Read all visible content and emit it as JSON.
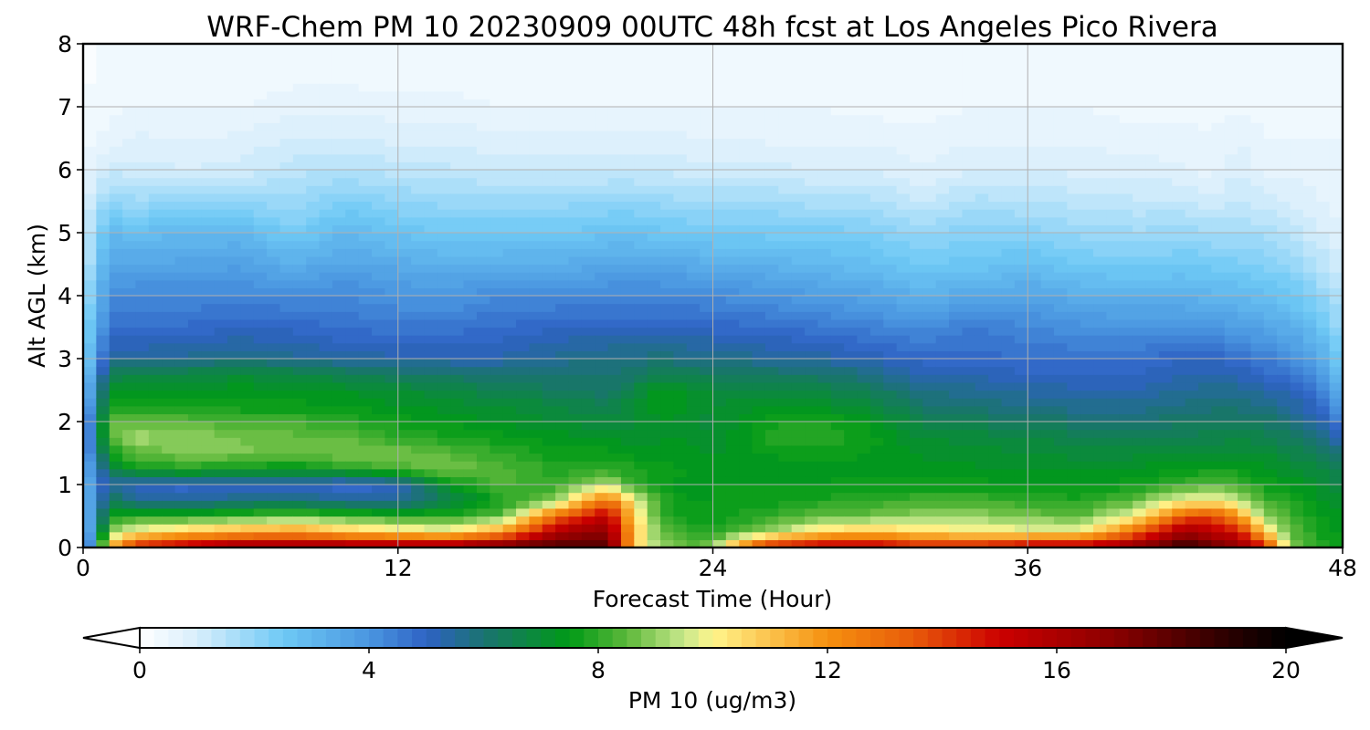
{
  "chart_data": {
    "type": "heatmap",
    "subtype": "filled-contour time-height cross-section",
    "title": "WRF-Chem PM 10  20230909 00UTC 48h fcst at Los Angeles Pico Rivera",
    "xlabel": "Forecast Time (Hour)",
    "ylabel": "Alt AGL (km)",
    "xlim": [
      0,
      48
    ],
    "ylim": [
      0,
      8
    ],
    "x_ticks": [
      "0",
      "12",
      "24",
      "36",
      "48"
    ],
    "y_ticks": [
      "0",
      "1",
      "2",
      "3",
      "4",
      "5",
      "6",
      "7",
      "8"
    ],
    "grid": true,
    "colorbar": {
      "label": "PM 10  (ug/m3)",
      "orientation": "horizontal",
      "placement": "bottom",
      "range": [
        0,
        20
      ],
      "ticks": [
        "0",
        "4",
        "8",
        "12",
        "16",
        "20"
      ],
      "extend": "both",
      "stops": [
        {
          "value": 0,
          "color": "#ffffff"
        },
        {
          "value": 1,
          "color": "#d8eefb"
        },
        {
          "value": 2.5,
          "color": "#6ec9f5"
        },
        {
          "value": 4,
          "color": "#4a96e0"
        },
        {
          "value": 5,
          "color": "#2f62c4"
        },
        {
          "value": 6,
          "color": "#1a7370"
        },
        {
          "value": 7.5,
          "color": "#009a16"
        },
        {
          "value": 8.5,
          "color": "#5cb83a"
        },
        {
          "value": 9.5,
          "color": "#c8e88c"
        },
        {
          "value": 10,
          "color": "#fff58c"
        },
        {
          "value": 11,
          "color": "#fbc24c"
        },
        {
          "value": 12,
          "color": "#f5900f"
        },
        {
          "value": 13.5,
          "color": "#e85a0a"
        },
        {
          "value": 15,
          "color": "#cc0000"
        },
        {
          "value": 17,
          "color": "#8a0000"
        },
        {
          "value": 19,
          "color": "#2a0000"
        },
        {
          "value": 20,
          "color": "#000000"
        }
      ]
    },
    "altitudes_km": [
      0,
      0.25,
      0.5,
      0.75,
      1,
      1.25,
      1.5,
      1.75,
      2,
      2.25,
      2.5,
      2.75,
      3,
      3.5,
      4,
      4.5,
      5,
      5.5,
      6,
      6.5,
      7,
      7.5,
      8
    ],
    "times_h": [
      0,
      1,
      2,
      4,
      6,
      8,
      10,
      12,
      14,
      16,
      18,
      20,
      21,
      22,
      23,
      24,
      26,
      28,
      30,
      32,
      34,
      36,
      38,
      40,
      42,
      43,
      44,
      45,
      46,
      47,
      48
    ],
    "profiles_ug_m3": [
      [
        2,
        2,
        2.2,
        2.5,
        3,
        3,
        3.2,
        3.2,
        3,
        2.7,
        2.4,
        2.2,
        2,
        1.8,
        1.5,
        1.2,
        1,
        0.8,
        0.6,
        0.4,
        0.3,
        0.2,
        0.2
      ],
      [
        11,
        9,
        7.5,
        6.5,
        5.5,
        6.5,
        7.5,
        8.3,
        8.5,
        7.6,
        7.2,
        6.5,
        5.5,
        4.8,
        4.2,
        3.5,
        3,
        2,
        1.2,
        0.6,
        0.4,
        0.3,
        0.3
      ],
      [
        15,
        10,
        8,
        5.5,
        5,
        7.5,
        8.5,
        9.2,
        8.6,
        7.6,
        7.3,
        6.7,
        5.5,
        4.8,
        4.3,
        3.5,
        2.8,
        1.8,
        1.1,
        0.8,
        0.5,
        0.3,
        0.3
      ],
      [
        16,
        11,
        8,
        5.5,
        4.8,
        7.8,
        8.8,
        9,
        8.5,
        7.6,
        7.3,
        6.8,
        5.6,
        4.8,
        4.3,
        3.6,
        3,
        2,
        1,
        0.7,
        0.5,
        0.3,
        0.3
      ],
      [
        17,
        11.5,
        8.3,
        5.8,
        5,
        7.5,
        8.8,
        8.7,
        8.2,
        7.6,
        7.4,
        6.9,
        5.8,
        5,
        4.3,
        3.7,
        3,
        2,
        1.1,
        0.8,
        0.5,
        0.3,
        0.3
      ],
      [
        17,
        12,
        8.6,
        6,
        5,
        7.4,
        8.6,
        8.6,
        8.2,
        7.6,
        7.3,
        6.8,
        5.6,
        4.9,
        4.2,
        3.3,
        2.4,
        1.8,
        1.4,
        1,
        0.7,
        0.4,
        0.3
      ],
      [
        17,
        11,
        8.3,
        5.5,
        4.7,
        7.8,
        8.8,
        8.5,
        8,
        7.5,
        7.2,
        6.5,
        5.4,
        4.7,
        4.3,
        3.6,
        3,
        2.3,
        1.5,
        1,
        0.7,
        0.4,
        0.3
      ],
      [
        17,
        10.5,
        8,
        5.5,
        5,
        8.3,
        8.8,
        8,
        7.6,
        7.3,
        7,
        6.2,
        5.3,
        4.6,
        4,
        3.4,
        2.7,
        2,
        1.4,
        0.9,
        0.6,
        0.4,
        0.3
      ],
      [
        17,
        10.2,
        8,
        6.5,
        7.5,
        8.7,
        8.4,
        7.8,
        7.5,
        7.1,
        6.8,
        6.1,
        5.3,
        4.6,
        4,
        3.2,
        2.5,
        1.9,
        1.3,
        0.9,
        0.6,
        0.4,
        0.3
      ],
      [
        18,
        12,
        8.5,
        7.8,
        8.3,
        8.4,
        8,
        7.6,
        7.2,
        7,
        6.5,
        6,
        5.3,
        4.8,
        4.2,
        3.3,
        2.5,
        1.9,
        1.2,
        0.8,
        0.5,
        0.3,
        0.3
      ],
      [
        18.5,
        16,
        13,
        9,
        8,
        7.9,
        7.6,
        7.4,
        7,
        6.8,
        6.3,
        6,
        5.6,
        5,
        4.2,
        3.3,
        2.5,
        1.9,
        1.2,
        0.8,
        0.5,
        0.3,
        0.3
      ],
      [
        18,
        17,
        15.5,
        13,
        9.5,
        8,
        7.6,
        7.2,
        6.8,
        6.5,
        6.1,
        6,
        5.8,
        5,
        4.3,
        3.5,
        2.7,
        2,
        1.2,
        0.8,
        0.5,
        0.3,
        0.3
      ],
      [
        11,
        11,
        10.5,
        10,
        8,
        7.8,
        7.4,
        7,
        6.9,
        7,
        6.8,
        6.1,
        5.8,
        5,
        4.3,
        3.5,
        2.7,
        2,
        1.2,
        0.8,
        0.5,
        0.3,
        0.3
      ],
      [
        9,
        8.5,
        8,
        8,
        7.6,
        7.6,
        7.4,
        7.2,
        7.3,
        7.5,
        7.4,
        6.5,
        5.9,
        5,
        4.3,
        3.5,
        2.6,
        1.9,
        1.2,
        0.8,
        0.5,
        0.3,
        0.3
      ],
      [
        8.5,
        8,
        7.6,
        7.5,
        7.4,
        7.5,
        7.4,
        7.2,
        7.1,
        7.3,
        7.2,
        6.5,
        5.8,
        5,
        4.3,
        3.4,
        2.5,
        1.8,
        1.1,
        0.8,
        0.5,
        0.3,
        0.3
      ],
      [
        9,
        7.8,
        7.5,
        7.5,
        7.5,
        7.4,
        7.2,
        7,
        6.9,
        7,
        6.9,
        6.3,
        5.8,
        4.9,
        4.2,
        3.3,
        2.4,
        1.8,
        1.1,
        0.7,
        0.5,
        0.3,
        0.3
      ],
      [
        15,
        9,
        8,
        7.6,
        7.5,
        7.4,
        7.5,
        7.8,
        7.7,
        7.2,
        6.8,
        6.2,
        5.5,
        4.8,
        4,
        3.2,
        2.4,
        1.8,
        1.1,
        0.7,
        0.5,
        0.3,
        0.3
      ],
      [
        16,
        10.5,
        8.5,
        7.8,
        7.5,
        7.4,
        7.6,
        8.1,
        7.8,
        7.2,
        6.7,
        6.1,
        5.4,
        4.6,
        3.8,
        3,
        2.4,
        1.6,
        1,
        0.7,
        0.5,
        0.3,
        0.3
      ],
      [
        16,
        11,
        8.7,
        8,
        7.6,
        7.4,
        7.5,
        7.6,
        7.4,
        6.9,
        6.4,
        5.8,
        5.2,
        4.4,
        3.6,
        2.8,
        2.3,
        1.6,
        1,
        0.7,
        0.4,
        0.3,
        0.3
      ],
      [
        15,
        10.5,
        9,
        8.2,
        7.6,
        7.3,
        7.2,
        7,
        6.6,
        6.1,
        5.7,
        5.2,
        4.9,
        4.2,
        3.2,
        2.5,
        1.9,
        1.2,
        0.8,
        0.6,
        0.4,
        0.3,
        0.3
      ],
      [
        15,
        10.2,
        9,
        8.2,
        7.6,
        7.3,
        7.1,
        6.9,
        6.4,
        5.9,
        5.6,
        5.2,
        4.9,
        4.5,
        3.5,
        2.6,
        2.2,
        1.6,
        1,
        0.7,
        0.5,
        0.3,
        0.3
      ],
      [
        16,
        10,
        8.8,
        8,
        7.5,
        7.3,
        7,
        6.8,
        6.3,
        5.7,
        5.4,
        5,
        4.7,
        4.3,
        3.6,
        2.8,
        2.1,
        1.5,
        1,
        0.7,
        0.5,
        0.3,
        0.3
      ],
      [
        16,
        10,
        8.5,
        7.8,
        7.5,
        7.2,
        6.9,
        6.6,
        6.1,
        5.6,
        5.3,
        5,
        4.7,
        4.1,
        3.3,
        2.5,
        1.9,
        1.4,
        0.9,
        0.7,
        0.5,
        0.3,
        0.3
      ],
      [
        17,
        13,
        9.8,
        8.5,
        7.6,
        7.3,
        6.9,
        6.4,
        6,
        5.6,
        5.3,
        5,
        4.7,
        4,
        3.2,
        2.4,
        1.8,
        1.3,
        0.9,
        0.6,
        0.4,
        0.3,
        0.3
      ],
      [
        19,
        16.5,
        13.5,
        10,
        8.2,
        7.5,
        7,
        6.5,
        6.2,
        5.8,
        5.5,
        5.2,
        5,
        4,
        3.2,
        2.5,
        1.9,
        1.3,
        0.8,
        0.6,
        0.4,
        0.3,
        0.3
      ],
      [
        18,
        15.5,
        14,
        10,
        8.5,
        7.6,
        7.1,
        6.6,
        6.3,
        5.9,
        5.6,
        5.3,
        5,
        4,
        3.1,
        2.4,
        1.8,
        1.1,
        0.6,
        0.5,
        0.4,
        0.3,
        0.3
      ],
      [
        17,
        15,
        12,
        9.5,
        8.2,
        7.6,
        7.1,
        6.7,
        6.3,
        5.9,
        5.6,
        5.2,
        4.8,
        3.8,
        3,
        2.3,
        1.7,
        1.3,
        1,
        0.7,
        0.5,
        0.3,
        0.3
      ],
      [
        15,
        11,
        9,
        8.2,
        7.7,
        7.3,
        7,
        6.6,
        6.2,
        5.8,
        5.4,
        4.9,
        4.5,
        3.6,
        2.8,
        2.2,
        1.7,
        1.1,
        0.7,
        0.5,
        0.4,
        0.3,
        0.3
      ],
      [
        9,
        8.5,
        8.2,
        7.8,
        7.4,
        7.1,
        6.7,
        6.3,
        5.9,
        5.5,
        5.1,
        4.6,
        4.2,
        3.3,
        2.6,
        2,
        1.4,
        0.9,
        0.7,
        0.5,
        0.4,
        0.4,
        0.3
      ],
      [
        8,
        7.8,
        7.6,
        7.4,
        7.1,
        6.8,
        6.3,
        5.9,
        5.5,
        5,
        4.6,
        4.1,
        3.6,
        2.8,
        2.1,
        1.5,
        1.1,
        0.8,
        0.6,
        0.5,
        0.5,
        0.4,
        0.4
      ],
      [
        7.5,
        7.4,
        7.2,
        7,
        6.7,
        6.3,
        5.8,
        5.1,
        4.3,
        3.7,
        3.2,
        2.7,
        2.3,
        1.8,
        1.4,
        1.1,
        0.8,
        0.6,
        0.5,
        0.5,
        0.4,
        0.4,
        0.4
      ]
    ]
  }
}
